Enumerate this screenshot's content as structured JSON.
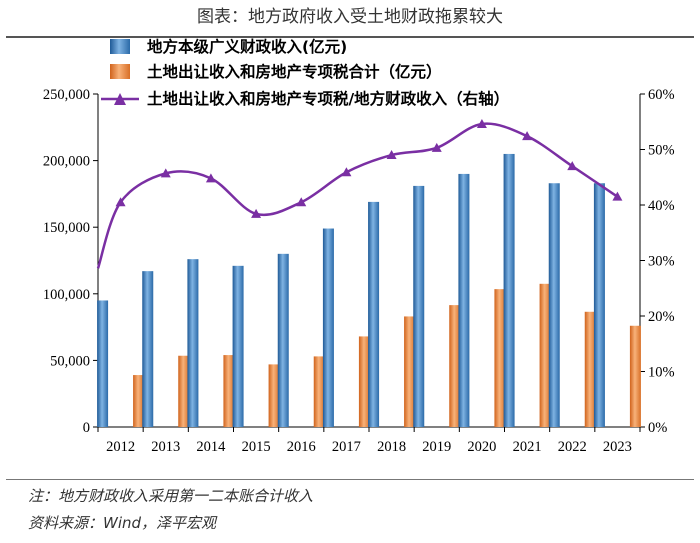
{
  "header": {
    "title": "图表：地方政府收入受土地财政拖累较大"
  },
  "footnotes": {
    "note": "注：地方财政收入采用第一二本账合计收入",
    "source": "资料来源：Wind，泽平宏观"
  },
  "colors": {
    "bar_blue": "#3f86c6",
    "bar_orange": "#f0883a",
    "line": "#7a2fa3"
  },
  "chart_data": {
    "type": "bar",
    "categories": [
      "2012",
      "2013",
      "2014",
      "2015",
      "2016",
      "2017",
      "2018",
      "2019",
      "2020",
      "2021",
      "2022",
      "2023"
    ],
    "series": [
      {
        "name": "地方本级广义财政收入(亿元)",
        "kind": "bar",
        "axis": "left",
        "values": [
          95000,
          117000,
          126000,
          121000,
          130000,
          149000,
          169000,
          181000,
          190000,
          205000,
          183000,
          183000
        ]
      },
      {
        "name": "土地出让收入和房地产专项税合计（亿元）",
        "kind": "bar",
        "axis": "left",
        "values": [
          39000,
          53500,
          54000,
          47000,
          53000,
          68000,
          83000,
          91500,
          103500,
          107500,
          86500,
          76000
        ]
      },
      {
        "name": "土地出让收入和房地产专项税/地方财政收入（右轴）",
        "kind": "line",
        "axis": "right",
        "values": [
          40.5,
          45.7,
          44.8,
          38.4,
          40.5,
          45.9,
          49.0,
          50.3,
          54.6,
          52.4,
          47.0,
          41.5
        ]
      }
    ],
    "left_axis": {
      "min": 0,
      "max": 250000,
      "ticks": [
        "0",
        "50,000",
        "100,000",
        "150,000",
        "200,000",
        "250,000"
      ]
    },
    "right_axis": {
      "min": 0,
      "max": 60,
      "ticks": [
        "0%",
        "10%",
        "20%",
        "30%",
        "40%",
        "50%",
        "60%"
      ]
    },
    "legend_position": "top-left",
    "grid": false
  }
}
